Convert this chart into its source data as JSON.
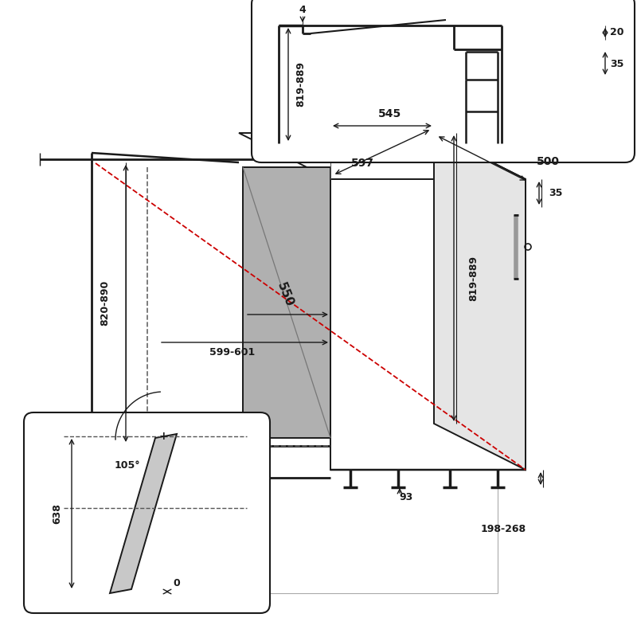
{
  "bg_color": "#ffffff",
  "line_color": "#1a1a1a",
  "gray_fill": "#b0b0b0",
  "red_dash": "#cc0000",
  "fig_width": 8.0,
  "fig_height": 8.0,
  "labels": {
    "top_4": "4",
    "top_20": "20",
    "top_35": "35",
    "top_819_889": "819-889",
    "main_545": "545",
    "main_597": "597",
    "main_500": "500",
    "main_550": "550",
    "main_599_601": "599-601",
    "main_820_890": "820-890",
    "main_35": "35",
    "main_198_268": "198-268",
    "main_819_889": "819-889",
    "main_93": "93",
    "door_105": "105°",
    "door_638": "638",
    "door_0": "0"
  }
}
